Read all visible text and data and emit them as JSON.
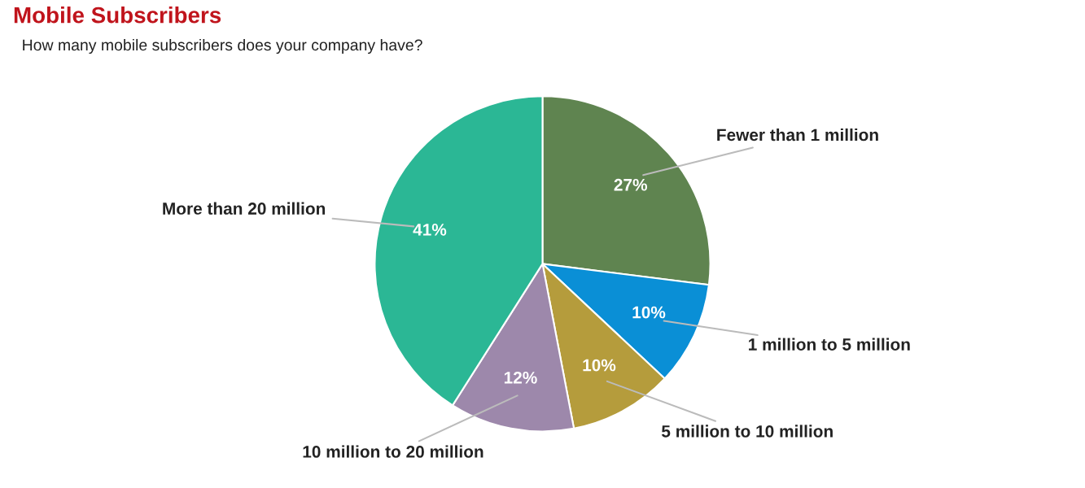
{
  "chart_data": {
    "type": "pie",
    "title": "Mobile Subscribers",
    "subtitle": "How many mobile subscribers does your company have?",
    "categories": [
      "Fewer than 1 million",
      "1 million to 5 million",
      "5 million to 10 million",
      "10 million to 20 million",
      "More than 20 million"
    ],
    "values": [
      27,
      10,
      10,
      12,
      41
    ],
    "colors": [
      "#5f8450",
      "#0a8fd6",
      "#b59c3c",
      "#9d88ab",
      "#2bb795"
    ],
    "value_labels": [
      "27%",
      "10%",
      "10%",
      "12%",
      "41%"
    ]
  }
}
